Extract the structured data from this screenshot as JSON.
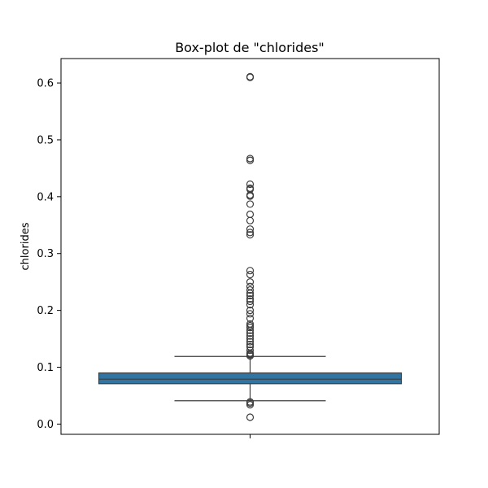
{
  "chart_data": {
    "type": "boxplot",
    "title": "Box-plot de \"chlorides\"",
    "xlabel": "",
    "ylabel": "chlorides",
    "ylim": [
      -0.018,
      0.643
    ],
    "yticks": [
      0.0,
      0.1,
      0.2,
      0.3,
      0.4,
      0.5,
      0.6
    ],
    "ytick_labels": [
      "0.0",
      "0.1",
      "0.2",
      "0.3",
      "0.4",
      "0.5",
      "0.6"
    ],
    "grid": false,
    "box": {
      "q1": 0.071,
      "median": 0.079,
      "q3": 0.09,
      "whisker_low": 0.041,
      "whisker_high": 0.119,
      "color": "#3274a1",
      "edge_color": "#3d3d3d"
    },
    "outliers": [
      0.012,
      0.034,
      0.037,
      0.039,
      0.12,
      0.122,
      0.123,
      0.125,
      0.13,
      0.136,
      0.14,
      0.145,
      0.15,
      0.155,
      0.16,
      0.165,
      0.17,
      0.173,
      0.176,
      0.186,
      0.194,
      0.2,
      0.21,
      0.216,
      0.22,
      0.226,
      0.23,
      0.236,
      0.242,
      0.25,
      0.263,
      0.27,
      0.333,
      0.337,
      0.343,
      0.358,
      0.369,
      0.387,
      0.401,
      0.403,
      0.413,
      0.415,
      0.422,
      0.464,
      0.467,
      0.61,
      0.611
    ]
  }
}
